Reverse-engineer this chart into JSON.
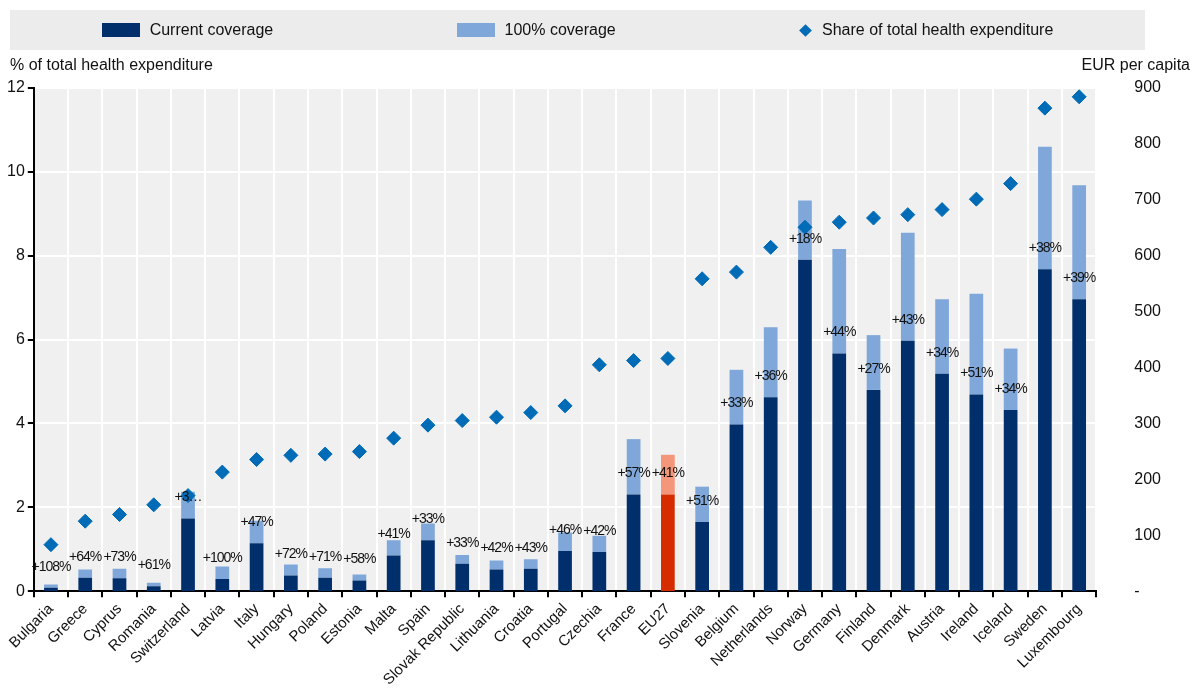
{
  "chart_data": {
    "type": "bar",
    "stacked": true,
    "ylabel": "% of total health expenditure",
    "y2label": "EUR per capita",
    "categories": [
      "Bulgaria",
      "Greece",
      "Cyprus",
      "Romania",
      "Switzerland",
      "Latvia",
      "Italy",
      "Hungary",
      "Poland",
      "Estonia",
      "Malta",
      "Spain",
      "Slovak Republic",
      "Lithuania",
      "Croatia",
      "Portugal",
      "Czechia",
      "France",
      "EU27",
      "Slovenia",
      "Belgium",
      "Netherlands",
      "Norway",
      "Germany",
      "Finland",
      "Denmark",
      "Austria",
      "Ireland",
      "Iceland",
      "Sweden",
      "Luxembourg"
    ],
    "series": [
      {
        "name": "Current coverage",
        "axis": "y2",
        "color": "#002f6c",
        "colors": [
          "#002f6c",
          "#002f6c",
          "#002f6c",
          "#002f6c",
          "#002f6c",
          "#002f6c",
          "#002f6c",
          "#002f6c",
          "#002f6c",
          "#002f6c",
          "#002f6c",
          "#002f6c",
          "#002f6c",
          "#002f6c",
          "#002f6c",
          "#002f6c",
          "#002f6c",
          "#002f6c",
          "#d62d00",
          "#002f6c",
          "#002f6c",
          "#002f6c",
          "#002f6c",
          "#002f6c",
          "#002f6c",
          "#002f6c",
          "#002f6c",
          "#002f6c",
          "#002f6c",
          "#002f6c",
          "#002f6c"
        ],
        "values": [
          6,
          24,
          23,
          9,
          130,
          22,
          86,
          28,
          24,
          19,
          64,
          91,
          49,
          39,
          40,
          72,
          70,
          173,
          173,
          124,
          298,
          347,
          593,
          425,
          360,
          448,
          389,
          352,
          324,
          576,
          522
        ]
      },
      {
        "name": "100% coverage",
        "axis": "y2",
        "color": "#7fa7d9",
        "colors": [
          "#7fa7d9",
          "#7fa7d9",
          "#7fa7d9",
          "#7fa7d9",
          "#7fa7d9",
          "#7fa7d9",
          "#7fa7d9",
          "#7fa7d9",
          "#7fa7d9",
          "#7fa7d9",
          "#7fa7d9",
          "#7fa7d9",
          "#7fa7d9",
          "#7fa7d9",
          "#7fa7d9",
          "#7fa7d9",
          "#7fa7d9",
          "#7fa7d9",
          "#f4967a",
          "#7fa7d9",
          "#7fa7d9",
          "#7fa7d9",
          "#7fa7d9",
          "#7fa7d9",
          "#7fa7d9",
          "#7fa7d9",
          "#7fa7d9",
          "#7fa7d9",
          "#7fa7d9",
          "#7fa7d9",
          "#7fa7d9"
        ],
        "values": [
          6,
          15,
          17,
          6,
          48,
          22,
          40,
          20,
          17,
          11,
          27,
          30,
          16,
          16,
          17,
          33,
          29,
          99,
          71,
          63,
          98,
          125,
          106,
          187,
          98,
          193,
          133,
          180,
          110,
          219,
          204
        ]
      },
      {
        "name": "Share of total health expenditure",
        "type": "scatter",
        "marker": "diamond",
        "color": "#006bb6",
        "values": [
          1.11,
          1.67,
          1.83,
          2.06,
          2.28,
          2.84,
          3.14,
          3.24,
          3.27,
          3.33,
          3.65,
          3.96,
          4.07,
          4.15,
          4.26,
          4.42,
          5.4,
          5.5,
          5.55,
          7.45,
          7.61,
          8.2,
          8.68,
          8.8,
          8.9,
          8.98,
          9.1,
          9.35,
          9.72,
          11.52,
          11.79
        ]
      }
    ],
    "annotations": [
      "+108%",
      "+64%",
      "+73%",
      "+61%",
      "+3…",
      "+100%",
      "+47%",
      "+72%",
      "+71%",
      "+58%",
      "+41%",
      "+33%",
      "+33%",
      "+42%",
      "+43%",
      "+46%",
      "+42%",
      "+57%",
      "+41%",
      "+51%",
      "+33%",
      "+36%",
      "+18%",
      "+44%",
      "+27%",
      "+43%",
      "+34%",
      "+51%",
      "+34%",
      "+38%",
      "+39%"
    ],
    "ylim": [
      0,
      12
    ],
    "yticks": [
      0,
      2,
      4,
      6,
      8,
      10,
      12
    ],
    "y2lim": [
      0,
      900
    ],
    "y2ticks": [
      {
        "value": 0,
        "label": "-"
      },
      100,
      200,
      300,
      400,
      500,
      600,
      700,
      800,
      900
    ],
    "grid": true,
    "legend": "top"
  }
}
